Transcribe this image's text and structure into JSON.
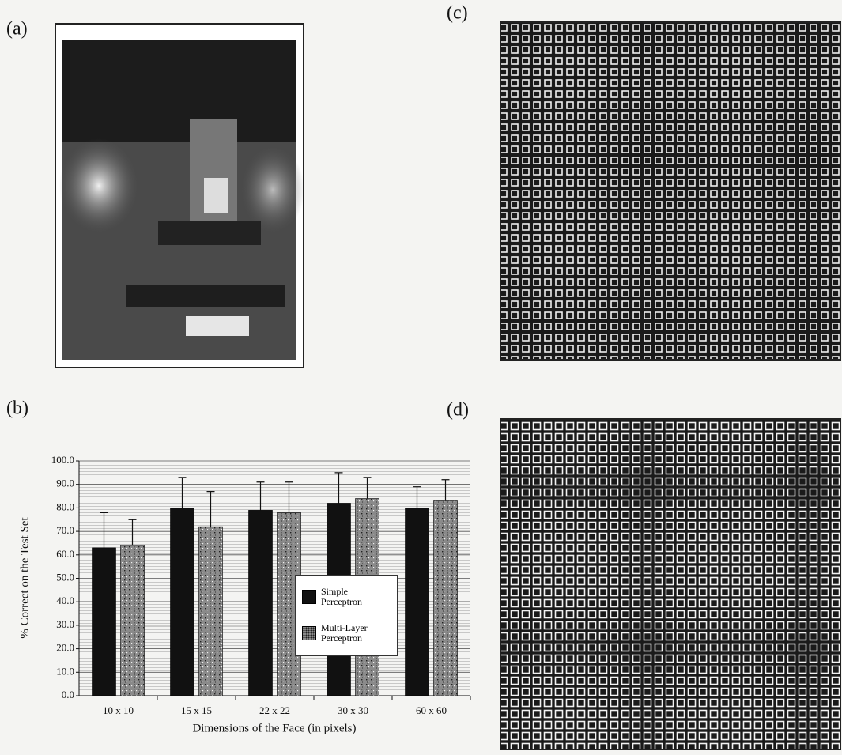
{
  "panel_labels": [
    "(a)",
    "(b)",
    "(c)",
    "(d)"
  ],
  "chart_data": {
    "type": "bar",
    "categories": [
      "10 x 10",
      "15 x 15",
      "22 x 22",
      "30 x 30",
      "60 x 60"
    ],
    "series": [
      {
        "name": "Simple Perceptron",
        "color": "#111111",
        "values": [
          63,
          80,
          79,
          82,
          80
        ],
        "errors": [
          15,
          13,
          12,
          13,
          9
        ]
      },
      {
        "name": "Multi-Layer Perceptron",
        "color": "#8a8a8a",
        "values": [
          64,
          72,
          78,
          84,
          83
        ],
        "errors": [
          11,
          15,
          13,
          9,
          9
        ]
      }
    ],
    "xlabel": "Dimensions of the Face (in pixels)",
    "ylabel": "% Correct on the Test Set",
    "ylim": [
      0,
      100
    ],
    "yticks": [
      {
        "value": 0,
        "label": "0.0"
      },
      {
        "value": 10,
        "label": "10.0"
      },
      {
        "value": 20,
        "label": "20.0"
      },
      {
        "value": 30,
        "label": "30.0"
      },
      {
        "value": 40,
        "label": "40.0"
      },
      {
        "value": 50,
        "label": "50.0"
      },
      {
        "value": 60,
        "label": "60.0"
      },
      {
        "value": 70,
        "label": "70.0"
      },
      {
        "value": 80,
        "label": "80.0"
      },
      {
        "value": 90,
        "label": "90.0"
      },
      {
        "value": 100,
        "label": "100.0"
      }
    ],
    "grid": true
  }
}
